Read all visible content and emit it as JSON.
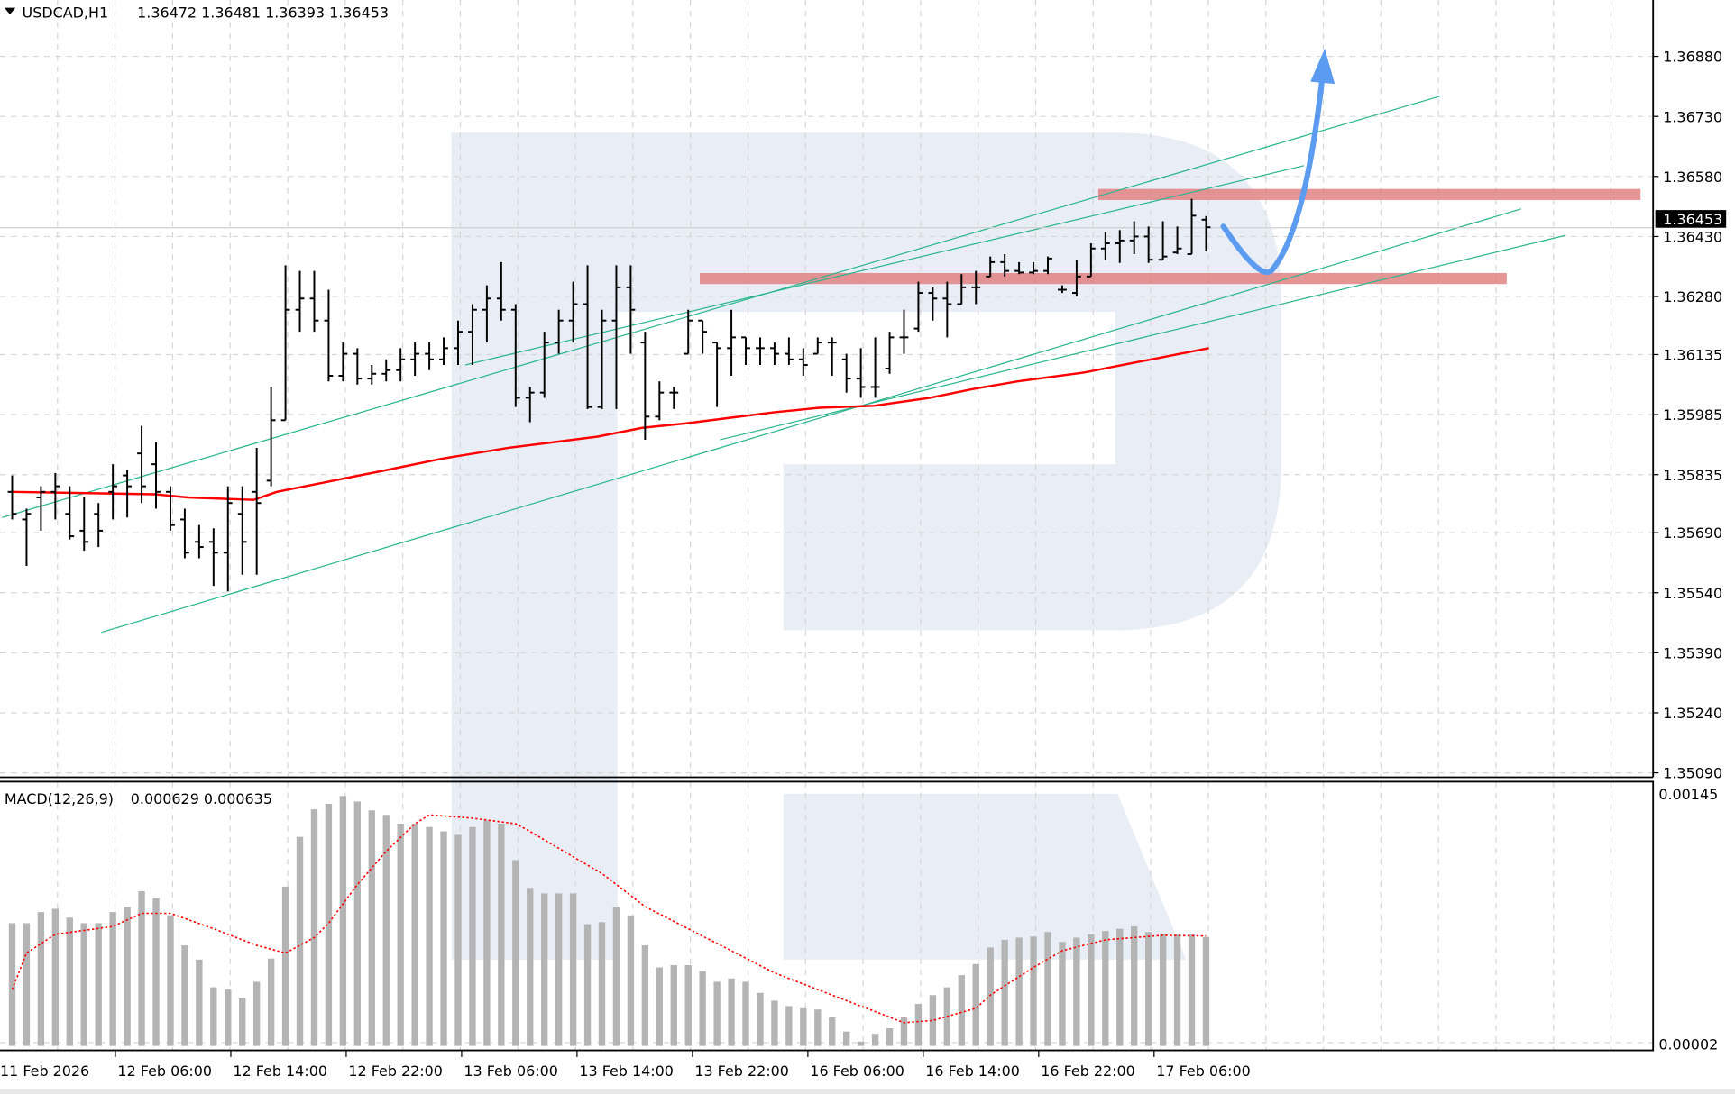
{
  "header": {
    "menu_icon": "triangle-down-icon",
    "symbol": "USDCAD,H1",
    "ohlc": "1.36472 1.36481 1.36393 1.36453"
  },
  "macd_header": {
    "label": "MACD(12,26,9)",
    "values": "0.000629 0.000635"
  },
  "current_price_label": "1.36453",
  "colors": {
    "bars": "#000000",
    "moving_average": "#ff0000",
    "trendlines": "#2bb58f",
    "zones": "#e07a7a",
    "forecast_arrow": "#5b9bf0",
    "histogram": "#b4b4b4",
    "signal": "#ff0000",
    "watermark": "#e9eef6"
  },
  "chart_data": [
    {
      "type": "ohlc",
      "title": "USDCAD,H1",
      "price_ticks": [
        "1.36880",
        "1.36730",
        "1.36580",
        "1.36430",
        "1.36280",
        "1.36135",
        "1.35985",
        "1.35835",
        "1.35690",
        "1.35540",
        "1.35390",
        "1.35240",
        "1.35090"
      ],
      "ylim": [
        1.3506,
        1.3702
      ],
      "time_labels": [
        "11 Feb 2026",
        "12 Feb 06:00",
        "12 Feb 14:00",
        "12 Feb 22:00",
        "13 Feb 06:00",
        "13 Feb 14:00",
        "13 Feb 22:00",
        "16 Feb 06:00",
        "16 Feb 14:00",
        "16 Feb 22:00",
        "17 Feb 06:00"
      ],
      "bars_ohlc": [
        [
          1.35792,
          1.35833,
          1.35723,
          1.35737
        ],
        [
          1.35723,
          1.3575,
          1.35607,
          1.35737
        ],
        [
          1.35778,
          1.35806,
          1.35695,
          1.35792
        ],
        [
          1.35792,
          1.35839,
          1.35723,
          1.35806
        ],
        [
          1.35737,
          1.35806,
          1.35673,
          1.35681
        ],
        [
          1.35695,
          1.35778,
          1.35645,
          1.35667
        ],
        [
          1.35737,
          1.35764,
          1.35654,
          1.35695
        ],
        [
          1.35792,
          1.35861,
          1.35723,
          1.35806
        ],
        [
          1.35833,
          1.35847,
          1.35728,
          1.35806
        ],
        [
          1.35888,
          1.35957,
          1.35764,
          1.35806
        ],
        [
          1.35861,
          1.35916,
          1.3575,
          1.35792
        ],
        [
          1.35792,
          1.35806,
          1.35695,
          1.35709
        ],
        [
          1.35723,
          1.3575,
          1.35626,
          1.3564
        ],
        [
          1.35667,
          1.35709,
          1.35626,
          1.35654
        ],
        [
          1.35667,
          1.35701,
          1.35557,
          1.3564
        ],
        [
          1.3564,
          1.35806,
          1.35543,
          1.35764
        ],
        [
          1.35737,
          1.35806,
          1.35585,
          1.35667
        ],
        [
          1.35792,
          1.35902,
          1.35585,
          1.35764
        ],
        [
          1.3582,
          1.36054,
          1.35806,
          1.35971
        ],
        [
          1.35971,
          1.36358,
          1.35971,
          1.36247
        ],
        [
          1.36247,
          1.36344,
          1.36192,
          1.36275
        ],
        [
          1.36275,
          1.36344,
          1.36192,
          1.3622
        ],
        [
          1.3622,
          1.36297,
          1.36068,
          1.36082
        ],
        [
          1.36082,
          1.36165,
          1.36068,
          1.36137
        ],
        [
          1.36137,
          1.36151,
          1.3606,
          1.36075
        ],
        [
          1.36075,
          1.36109,
          1.3606,
          1.36087
        ],
        [
          1.36087,
          1.36123,
          1.36068,
          1.36096
        ],
        [
          1.36096,
          1.36151,
          1.36068,
          1.36123
        ],
        [
          1.36123,
          1.36165,
          1.36082,
          1.36137
        ],
        [
          1.36137,
          1.36165,
          1.36096,
          1.36123
        ],
        [
          1.36123,
          1.36178,
          1.36109,
          1.36151
        ],
        [
          1.36151,
          1.3622,
          1.36109,
          1.36192
        ],
        [
          1.36192,
          1.36261,
          1.36109,
          1.36247
        ],
        [
          1.36247,
          1.36308,
          1.36165,
          1.36275
        ],
        [
          1.36275,
          1.36366,
          1.3622,
          1.36247
        ],
        [
          1.36247,
          1.36261,
          1.36004,
          1.36027
        ],
        [
          1.36027,
          1.36054,
          1.35966,
          1.3604
        ],
        [
          1.3604,
          1.36192,
          1.36027,
          1.36165
        ],
        [
          1.36165,
          1.36247,
          1.36137,
          1.3622
        ],
        [
          1.3622,
          1.36317,
          1.36165,
          1.36261
        ],
        [
          1.36261,
          1.36358,
          1.35999,
          1.36004
        ],
        [
          1.36004,
          1.36247,
          1.35999,
          1.3622
        ],
        [
          1.3622,
          1.36358,
          1.35999,
          1.36303
        ],
        [
          1.36303,
          1.36358,
          1.36137,
          1.36247
        ],
        [
          1.36165,
          1.36192,
          1.35922,
          1.3598
        ],
        [
          1.3598,
          1.36068,
          1.35971,
          1.3604
        ],
        [
          1.3604,
          1.36054,
          1.35999,
          1.3604
        ],
        [
          1.36137,
          1.36247,
          1.36137,
          1.3622
        ],
        [
          1.3622,
          1.3622,
          1.36137,
          1.36192
        ],
        [
          1.36165,
          1.36165,
          1.36004,
          1.36151
        ],
        [
          1.36151,
          1.36247,
          1.36082,
          1.36178
        ],
        [
          1.36178,
          1.36178,
          1.36109,
          1.36151
        ],
        [
          1.36151,
          1.36178,
          1.36109,
          1.36151
        ],
        [
          1.36151,
          1.36165,
          1.36109,
          1.36137
        ],
        [
          1.36137,
          1.36178,
          1.36109,
          1.36123
        ],
        [
          1.36123,
          1.36151,
          1.36082,
          1.36109
        ],
        [
          1.36137,
          1.36178,
          1.36137,
          1.36165
        ],
        [
          1.36165,
          1.36178,
          1.36082,
          1.36165
        ],
        [
          1.36123,
          1.36137,
          1.3604,
          1.36075
        ],
        [
          1.36075,
          1.36151,
          1.36027,
          1.36054
        ],
        [
          1.36054,
          1.36178,
          1.36027,
          1.36054
        ],
        [
          1.361,
          1.36192,
          1.36087,
          1.36178
        ],
        [
          1.36178,
          1.36247,
          1.36137,
          1.36178
        ],
        [
          1.362,
          1.36317,
          1.36192,
          1.36289
        ],
        [
          1.36289,
          1.36303,
          1.3622,
          1.36275
        ],
        [
          1.36275,
          1.36317,
          1.36178,
          1.36261
        ],
        [
          1.36261,
          1.36336,
          1.36261,
          1.36303
        ],
        [
          1.36303,
          1.36344,
          1.36261,
          1.36303
        ],
        [
          1.3633,
          1.3638,
          1.3633,
          1.36366
        ],
        [
          1.36366,
          1.36386,
          1.3633,
          1.36344
        ],
        [
          1.36344,
          1.36366,
          1.36336,
          1.3634
        ],
        [
          1.3634,
          1.36366,
          1.36336,
          1.36344
        ],
        [
          1.36344,
          1.3638,
          1.36336,
          1.36375
        ],
        [
          1.36297,
          1.36308,
          1.36289,
          1.36297
        ],
        [
          1.36289,
          1.36372,
          1.36281,
          1.3633
        ],
        [
          1.3633,
          1.36413,
          1.3633,
          1.364
        ],
        [
          1.364,
          1.36441,
          1.36372,
          1.36413
        ],
        [
          1.36413,
          1.36446,
          1.36364,
          1.3642
        ],
        [
          1.3642,
          1.36468,
          1.36386,
          1.3643
        ],
        [
          1.3643,
          1.36455,
          1.36364,
          1.36372
        ],
        [
          1.36372,
          1.36468,
          1.36372,
          1.3638
        ],
        [
          1.3639,
          1.36455,
          1.36386,
          1.364
        ],
        [
          1.36386,
          1.36524,
          1.36386,
          1.36482
        ],
        [
          1.36472,
          1.36481,
          1.36393,
          1.36453
        ]
      ],
      "moving_average": [
        [
          0,
          1.35792
        ],
        [
          9.9,
          1.35786
        ],
        [
          12.2,
          1.35778
        ],
        [
          16.8,
          1.35772
        ],
        [
          18.4,
          1.35792
        ],
        [
          22.2,
          1.35819
        ],
        [
          26.1,
          1.35847
        ],
        [
          29.9,
          1.35875
        ],
        [
          34.5,
          1.35902
        ],
        [
          37.6,
          1.35916
        ],
        [
          40.7,
          1.3593
        ],
        [
          43.8,
          1.35952
        ],
        [
          46.8,
          1.35963
        ],
        [
          49.9,
          1.35977
        ],
        [
          53,
          1.35991
        ],
        [
          56.1,
          1.36002
        ],
        [
          59.9,
          1.36007
        ],
        [
          63.8,
          1.36027
        ],
        [
          66.8,
          1.36049
        ],
        [
          69.9,
          1.36068
        ],
        [
          74.5,
          1.3609
        ],
        [
          79.2,
          1.36123
        ],
        [
          83.2,
          1.36151
        ]
      ],
      "trendlines": [
        [
          [
            -0.7,
            1.35728
          ],
          [
            99.3,
            1.36781
          ]
        ],
        [
          [
            31.5,
            1.36109
          ],
          [
            89.8,
            1.36607
          ]
        ],
        [
          [
            6.2,
            1.35441
          ],
          [
            104.9,
            1.36499
          ]
        ],
        [
          [
            49.2,
            1.35922
          ],
          [
            108,
            1.36433
          ]
        ]
      ],
      "zones": [
        {
          "from_bar": 75.5,
          "to_bar": 113.2,
          "price": 1.36535
        },
        {
          "from_bar": 47.8,
          "to_bar": 103.9,
          "price": 1.36325
        }
      ],
      "forecast_arrow": [
        [
          84.2,
          1.36455
        ],
        [
          87.6,
          1.36336
        ],
        [
          91.1,
          1.36883
        ]
      ]
    },
    {
      "type": "bar",
      "title": "MACD(12,26,9)",
      "axis_labels": [
        "0.00145",
        "0.00002"
      ],
      "ylim": [
        0,
        0.00145
      ],
      "histogram": [
        0.000709,
        0.000709,
        0.000773,
        0.000792,
        0.000741,
        0.000709,
        0.000709,
        0.000773,
        0.000805,
        0.000894,
        0.000856,
        0.000754,
        0.000581,
        0.000499,
        0.000339,
        0.000326,
        0.000275,
        0.000371,
        0.000505,
        0.00092,
        0.001207,
        0.001366,
        0.001398,
        0.001443,
        0.001411,
        0.00136,
        0.001334,
        0.001283,
        0.001283,
        0.001264,
        0.001239,
        0.001219,
        0.001264,
        0.001302,
        0.001283,
        0.001073,
        0.000913,
        0.000881,
        0.000881,
        0.000881,
        0.000703,
        0.000715,
        0.000805,
        0.000754,
        0.000581,
        0.000454,
        0.000467,
        0.000467,
        0.000435,
        0.000371,
        0.00039,
        0.000371,
        0.000307,
        0.000262,
        0.000231,
        0.000218,
        0.000211,
        0.000167,
        8.4e-05,
        2.6e-05,
        7.1e-05,
        0.000103,
        0.000167,
        0.000243,
        0.000294,
        0.000339,
        0.000409,
        0.000473,
        0.000569,
        0.000613,
        0.000626,
        0.000632,
        0.000658,
        0.000601,
        0.000626,
        0.000645,
        0.000664,
        0.000677,
        0.00069,
        0.000658,
        0.000645,
        0.000645,
        0.000645,
        0.000629
      ],
      "signal": [
        [
          0,
          0.000326
        ],
        [
          1,
          0.000537
        ],
        [
          3,
          0.000645
        ],
        [
          7,
          0.00069
        ],
        [
          9,
          0.000766
        ],
        [
          11,
          0.000766
        ],
        [
          14,
          0.000677
        ],
        [
          17,
          0.000581
        ],
        [
          19,
          0.000537
        ],
        [
          21,
          0.000626
        ],
        [
          22,
          0.000709
        ],
        [
          24,
          0.000932
        ],
        [
          26,
          0.001124
        ],
        [
          28,
          0.001283
        ],
        [
          29,
          0.001334
        ],
        [
          32,
          0.001315
        ],
        [
          35,
          0.001283
        ],
        [
          36,
          0.001239
        ],
        [
          39,
          0.001092
        ],
        [
          41,
          0.000996
        ],
        [
          44,
          0.000805
        ],
        [
          47,
          0.000677
        ],
        [
          50,
          0.00055
        ],
        [
          53,
          0.000422
        ],
        [
          56,
          0.000326
        ],
        [
          59,
          0.000231
        ],
        [
          61,
          0.000167
        ],
        [
          62,
          0.000135
        ],
        [
          64,
          0.000148
        ],
        [
          67,
          0.000218
        ],
        [
          68,
          0.000294
        ],
        [
          71,
          0.000454
        ],
        [
          73,
          0.00055
        ],
        [
          76,
          0.000613
        ],
        [
          80,
          0.000639
        ],
        [
          83,
          0.000635
        ]
      ]
    }
  ]
}
